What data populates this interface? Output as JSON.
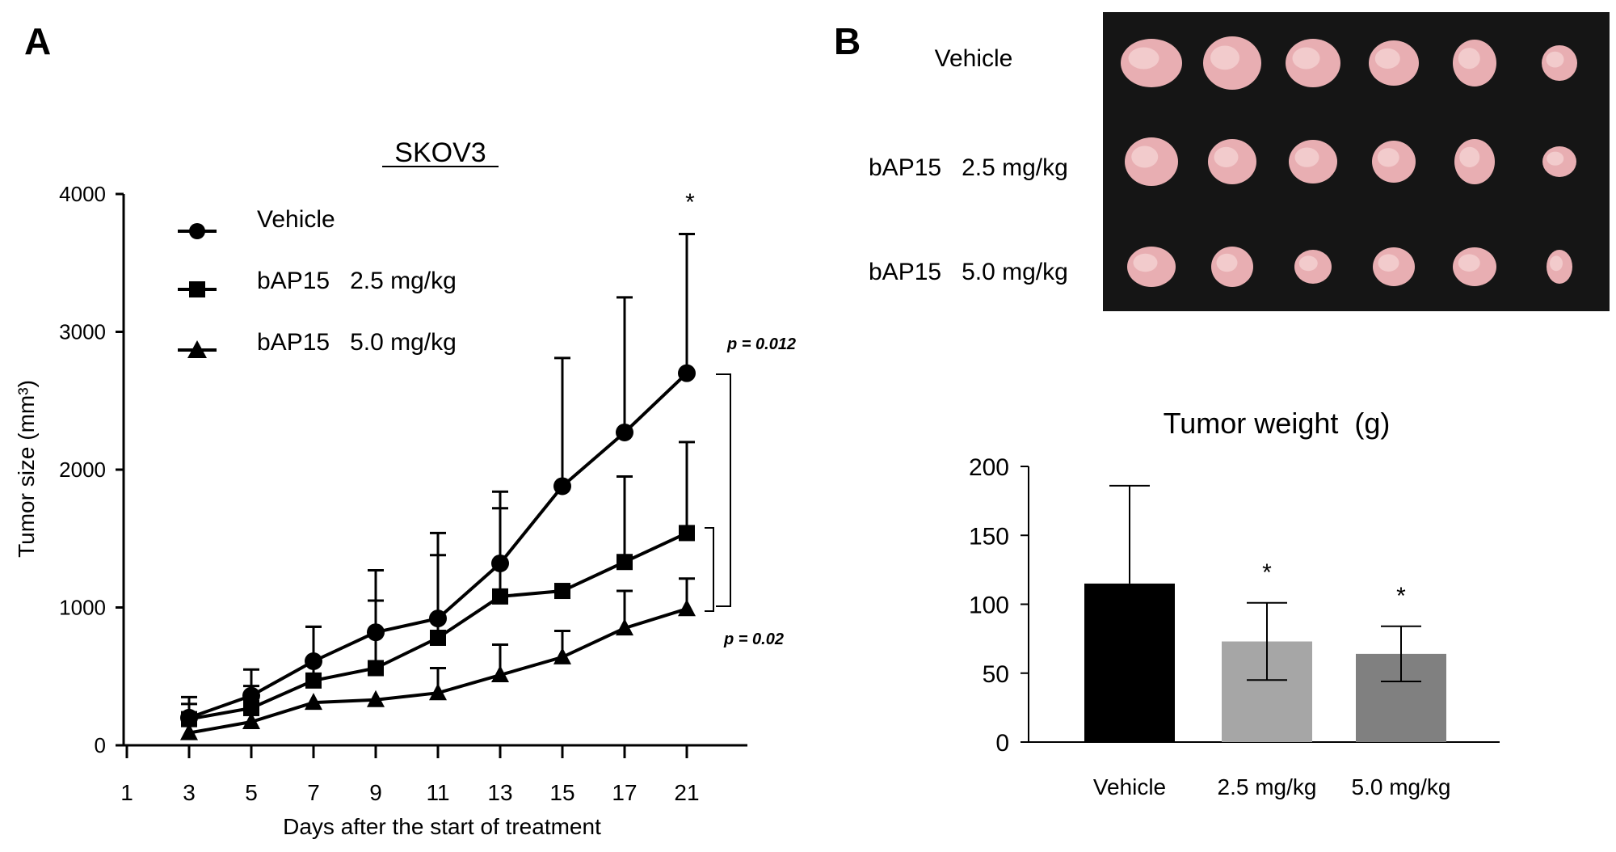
{
  "panel_a": {
    "letter": "A"
  },
  "panel_b": {
    "letter": "B"
  },
  "photo": {
    "row_labels": [
      "Vehicle",
      "bAP15   2.5 mg/kg",
      "bAP15   5.0 mg/kg"
    ],
    "background_color": "#151515",
    "tumor_color": "#e8aeb2"
  },
  "chart_data": [
    {
      "type": "line",
      "title": "SKOV3",
      "xlabel": "Days after the start of treatment",
      "ylabel": "Tumor  size (mm³)",
      "x_tick_labels": [
        "1",
        "3",
        "5",
        "7",
        "9",
        "11",
        "13",
        "15",
        "17",
        "21"
      ],
      "yticks": [
        "0",
        "1000",
        "2000",
        "3000",
        "4000"
      ],
      "ylim": [
        0,
        4000
      ],
      "legend_position": "top-left",
      "series": [
        {
          "name": "Vehicle",
          "marker": "circle",
          "x": [
            "3",
            "5",
            "7",
            "9",
            "11",
            "13",
            "15",
            "17",
            "21"
          ],
          "values": [
            200,
            360,
            610,
            820,
            920,
            1320,
            1880,
            2270,
            2700
          ],
          "error": [
            150,
            190,
            250,
            450,
            620,
            520,
            930,
            980,
            1010
          ]
        },
        {
          "name": "bAP15   2.5 mg/kg",
          "marker": "square",
          "x": [
            "3",
            "5",
            "7",
            "9",
            "11",
            "13",
            "15",
            "17",
            "21"
          ],
          "values": [
            190,
            270,
            470,
            560,
            780,
            1080,
            1120,
            1330,
            1540
          ],
          "error": [
            110,
            160,
            390,
            490,
            600,
            640,
            0,
            620,
            660
          ]
        },
        {
          "name": "bAP15   5.0 mg/kg",
          "marker": "triangle",
          "x": [
            "3",
            "5",
            "7",
            "9",
            "11",
            "13",
            "15",
            "17",
            "21"
          ],
          "values": [
            90,
            170,
            310,
            330,
            380,
            510,
            640,
            850,
            990
          ],
          "error": [
            0,
            0,
            0,
            0,
            180,
            220,
            190,
            270,
            220
          ]
        }
      ],
      "annotations": {
        "star": "*",
        "p_top": "p = 0.012",
        "p_bottom": "p = 0.02"
      }
    },
    {
      "type": "bar",
      "title": "Tumor weight  (g)",
      "categories": [
        "Vehicle",
        "2.5 mg/kg",
        "5.0 mg/kg"
      ],
      "values": [
        115,
        73,
        64
      ],
      "error": [
        71,
        28,
        20
      ],
      "significance": [
        "",
        "*",
        "*"
      ],
      "colors": [
        "#000000",
        "#a6a6a6",
        "#808080"
      ],
      "yticks": [
        "0",
        "50",
        "100",
        "150",
        "200"
      ],
      "ylim": [
        0,
        200
      ]
    }
  ]
}
